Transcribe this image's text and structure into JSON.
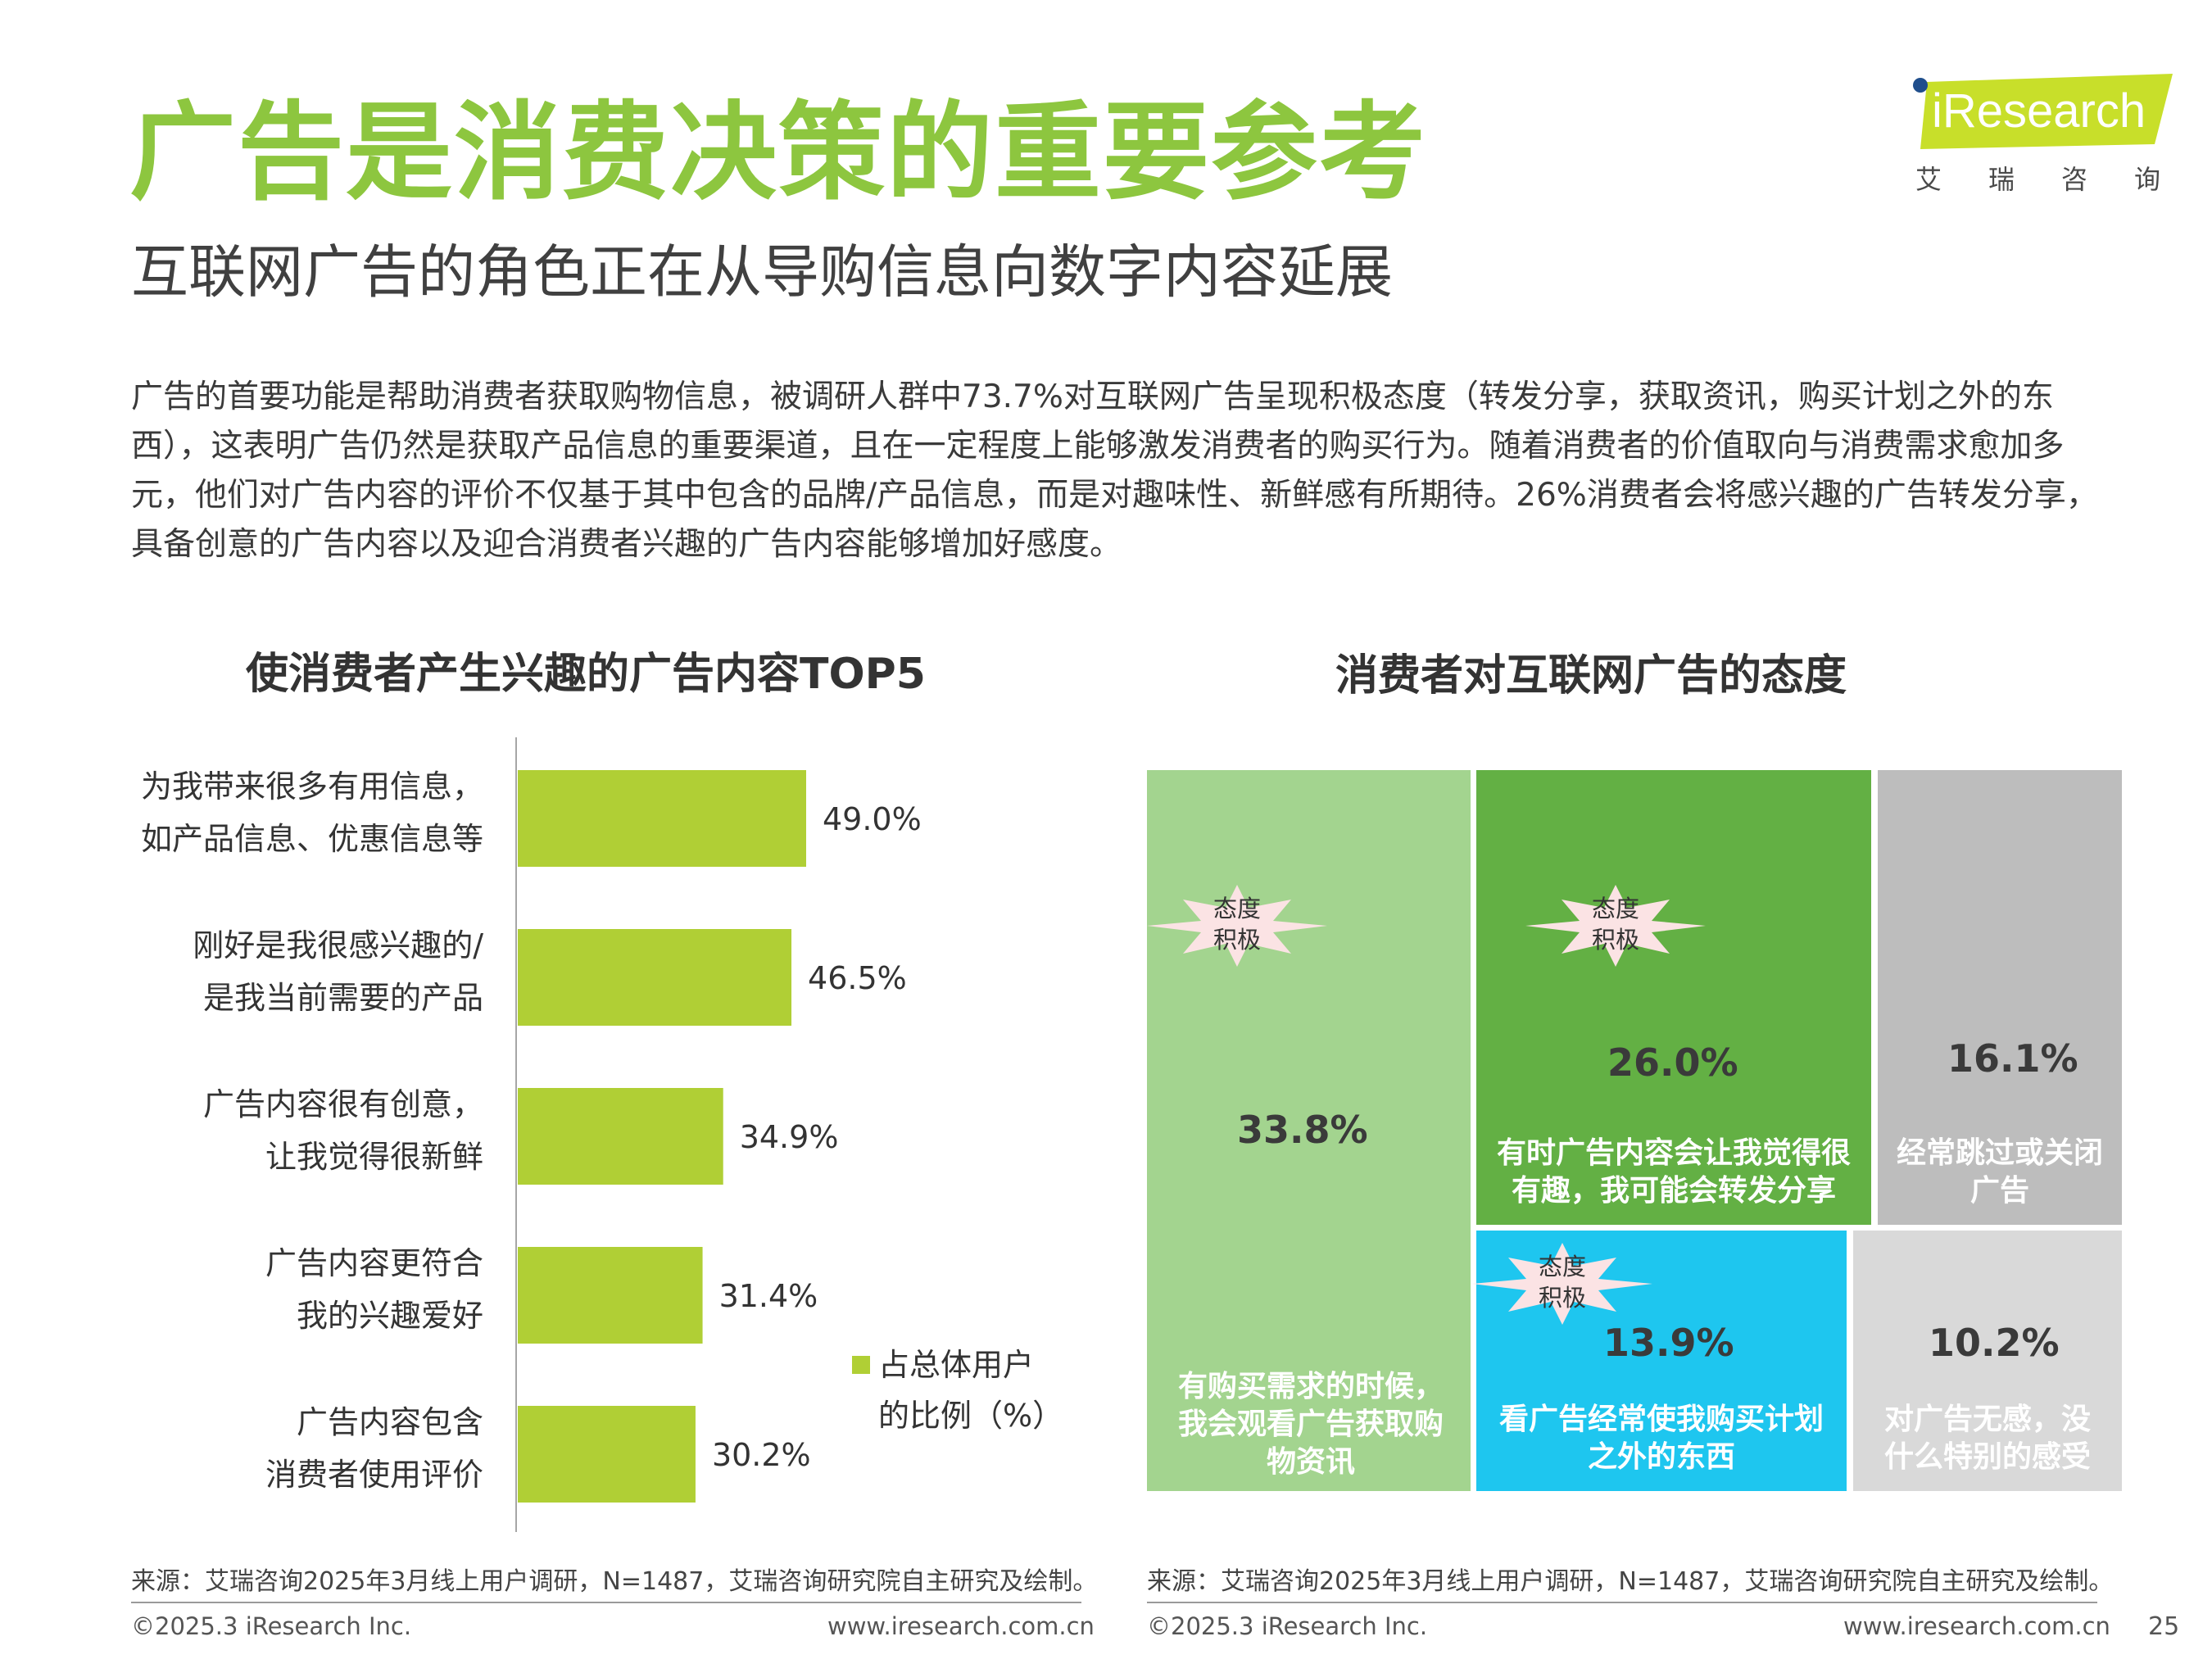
{
  "header": {
    "title": "广告是消费决策的重要参考",
    "subtitle": "互联网广告的角色正在从导购信息向数字内容延展"
  },
  "logo": {
    "wordmark": "iResearch",
    "chinese": "艾瑞咨询"
  },
  "intro": "广告的首要功能是帮助消费者获取购物信息，被调研人群中73.7%对互联网广告呈现积极态度（转发分享，获取资讯，购买计划之外的东西），这表明广告仍然是获取产品信息的重要渠道，且在一定程度上能够激发消费者的购买行为。随着消费者的价值取向与消费需求愈加多元，他们对广告内容的评价不仅基于其中包含的品牌/产品信息，而是对趣味性、新鲜感有所期待。26%消费者会将感兴趣的广告转发分享，具备创意的广告内容以及迎合消费者兴趣的广告内容能够增加好感度。",
  "colors": {
    "brand_green": "#8dc63f",
    "bar": "#b0cf35",
    "tile_light_green": "#a3d48f",
    "tile_green": "#63b044",
    "tile_gray": "#bdbdbd",
    "tile_blue": "#1ec6ef",
    "tile_light_gray": "#d9d9d9",
    "badge": "#fbe3e4"
  },
  "chart_data": [
    {
      "type": "bar",
      "orientation": "horizontal",
      "title": "使消费者产生兴趣的广告内容TOP5",
      "categories": [
        [
          "为我带来很多有用信息，",
          "如产品信息、优惠信息等"
        ],
        [
          "刚好是我很感兴趣的/",
          "是我当前需要的产品"
        ],
        [
          "广告内容很有创意，",
          "让我觉得很新鲜"
        ],
        [
          "广告内容更符合",
          "我的兴趣爱好"
        ],
        [
          "广告内容包含",
          "消费者使用评价"
        ]
      ],
      "values": [
        49.0,
        46.5,
        34.9,
        31.4,
        30.2
      ],
      "value_labels": [
        "49.0%",
        "46.5%",
        "34.9%",
        "31.4%",
        "30.2%"
      ],
      "legend": [
        "占总体用户",
        "的比例（%）"
      ],
      "legend_position": "right",
      "grid": false
    },
    {
      "type": "treemap",
      "title": "消费者对互联网广告的态度",
      "items": [
        {
          "label": "有购买需求的时候，我会观看广告获取购物资讯",
          "label_lines": [
            "有购买需求的时候，",
            "我会观看广告获取购",
            "物资讯"
          ],
          "value": 33.8,
          "value_label": "33.8%",
          "badge": [
            "态度",
            "积极"
          ]
        },
        {
          "label": "有时广告内容会让我觉得很有趣，我可能会转发分享",
          "label_lines": [
            "有时广告内容会让我觉得很",
            "有趣，我可能会转发分享"
          ],
          "value": 26.0,
          "value_label": "26.0%",
          "badge": [
            "态度",
            "积极"
          ]
        },
        {
          "label": "经常跳过或关闭广告",
          "label_lines": [
            "经常跳过或关闭",
            "广告"
          ],
          "value": 16.1,
          "value_label": "16.1%",
          "badge": null
        },
        {
          "label": "看广告经常使我购买计划之外的东西",
          "label_lines": [
            "看广告经常使我购买计划",
            "之外的东西"
          ],
          "value": 13.9,
          "value_label": "13.9%",
          "badge": [
            "态度",
            "积极"
          ]
        },
        {
          "label": "对广告无感，没什么特别的感受",
          "label_lines": [
            "对广告无感，没",
            "什么特别的感受"
          ],
          "value": 10.2,
          "value_label": "10.2%",
          "badge": null
        }
      ]
    }
  ],
  "sources": {
    "left": "来源：艾瑞咨询2025年3月线上用户调研，N=1487，艾瑞咨询研究院自主研究及绘制。",
    "right": "来源：艾瑞咨询2025年3月线上用户调研，N=1487，艾瑞咨询研究院自主研究及绘制。"
  },
  "footer": {
    "copyright_left": "©2025.3 iResearch Inc.",
    "url_left": "www.iresearch.com.cn",
    "copyright_right": "©2025.3 iResearch Inc.",
    "url_right": "www.iresearch.com.cn",
    "page_number": "25"
  }
}
